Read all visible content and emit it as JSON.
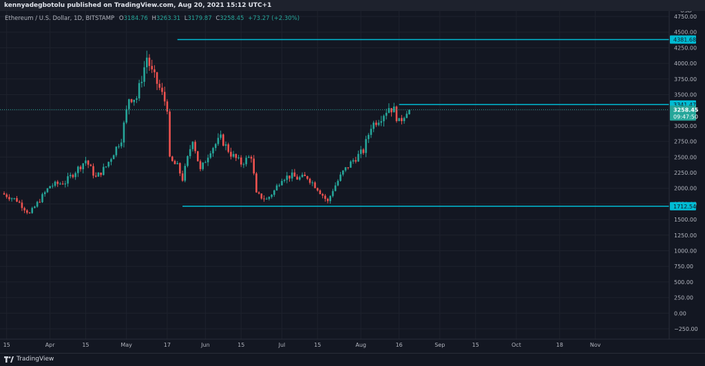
{
  "header": {
    "publisher_line": "kennyadegbotolu published on TradingView.com, Aug 20, 2021 15:12 UTC+1"
  },
  "legend": {
    "symbol": "Ethereum / U.S. Dollar, 1D, BITSTAMP",
    "o_label": "O",
    "o_value": "3184.76",
    "h_label": "H",
    "h_value": "3263.31",
    "l_label": "L",
    "l_value": "3179.87",
    "c_label": "C",
    "c_value": "3258.45",
    "change": "+73.27 (+2.30%)"
  },
  "footer": {
    "brand": "TradingView"
  },
  "colors": {
    "up": "#26a69a",
    "down": "#ef5350",
    "level": "#00bcd4",
    "background": "#131722",
    "grid": "#1e222d"
  },
  "chart_data": {
    "type": "candlestick",
    "currency_label": "USD",
    "ylim": [
      -250,
      4750
    ],
    "y_ticks": [
      -250,
      0,
      250,
      500,
      750,
      1000,
      1250,
      1500,
      1750,
      2000,
      2250,
      2500,
      2750,
      3000,
      3250,
      3500,
      3750,
      4000,
      4250,
      4500,
      4750
    ],
    "y_tick_labels": [
      "−250.00",
      "0.00",
      "250.00",
      "500.00",
      "750.00",
      "1000.00",
      "1250.00",
      "1500.00",
      "1750.00",
      "2000.00",
      "2250.00",
      "2500.00",
      "2750.00",
      "3000.00",
      "3250.00",
      "3500.00",
      "3750.00",
      "4000.00",
      "4250.00",
      "4500.00",
      "4750.00"
    ],
    "x_start": "2021-03-14",
    "x_end": "2021-11-30",
    "x_ticks": [
      {
        "date": "2021-03-15",
        "label": "15"
      },
      {
        "date": "2021-04-01",
        "label": "Apr"
      },
      {
        "date": "2021-04-15",
        "label": "15"
      },
      {
        "date": "2021-05-01",
        "label": "May"
      },
      {
        "date": "2021-05-17",
        "label": "17"
      },
      {
        "date": "2021-06-01",
        "label": "Jun"
      },
      {
        "date": "2021-06-15",
        "label": "15"
      },
      {
        "date": "2021-07-01",
        "label": "Jul"
      },
      {
        "date": "2021-07-15",
        "label": "15"
      },
      {
        "date": "2021-08-01",
        "label": "Aug"
      },
      {
        "date": "2021-08-16",
        "label": "16"
      },
      {
        "date": "2021-09-01",
        "label": "Sep"
      },
      {
        "date": "2021-09-15",
        "label": "15"
      },
      {
        "date": "2021-10-01",
        "label": "Oct"
      },
      {
        "date": "2021-10-18",
        "label": "18"
      },
      {
        "date": "2021-11-01",
        "label": "Nov"
      }
    ],
    "price_path": [
      [
        "2021-03-14",
        1920
      ],
      [
        "2021-03-20",
        1810
      ],
      [
        "2021-03-25",
        1590
      ],
      [
        "2021-04-02",
        2040
      ],
      [
        "2021-04-08",
        2100
      ],
      [
        "2021-04-16",
        2450
      ],
      [
        "2021-04-20",
        2170
      ],
      [
        "2021-04-24",
        2350
      ],
      [
        "2021-04-30",
        2800
      ],
      [
        "2021-05-03",
        3450
      ],
      [
        "2021-05-06",
        3450
      ],
      [
        "2021-05-10",
        4100
      ],
      [
        "2021-05-12",
        3850
      ],
      [
        "2021-05-15",
        3600
      ],
      [
        "2021-05-18",
        3300
      ],
      [
        "2021-05-19",
        2450
      ],
      [
        "2021-05-22",
        2350
      ],
      [
        "2021-05-24",
        2150
      ],
      [
        "2021-05-28",
        2800
      ],
      [
        "2021-05-31",
        2280
      ],
      [
        "2021-06-04",
        2620
      ],
      [
        "2021-06-08",
        2800
      ],
      [
        "2021-06-12",
        2550
      ],
      [
        "2021-06-16",
        2400
      ],
      [
        "2021-06-20",
        2520
      ],
      [
        "2021-06-22",
        1900
      ],
      [
        "2021-06-26",
        1820
      ],
      [
        "2021-06-29",
        1960
      ],
      [
        "2021-07-02",
        2170
      ],
      [
        "2021-07-06",
        2200
      ],
      [
        "2021-07-08",
        2160
      ],
      [
        "2021-07-12",
        2180
      ],
      [
        "2021-07-16",
        2000
      ],
      [
        "2021-07-20",
        1780
      ],
      [
        "2021-07-22",
        1980
      ],
      [
        "2021-07-26",
        2260
      ],
      [
        "2021-07-30",
        2450
      ],
      [
        "2021-08-03",
        2600
      ],
      [
        "2021-08-06",
        3000
      ],
      [
        "2021-08-10",
        3150
      ],
      [
        "2021-08-13",
        3300
      ],
      [
        "2021-08-15",
        3250
      ],
      [
        "2021-08-17",
        3050
      ],
      [
        "2021-08-19",
        3184.76
      ],
      [
        "2021-08-20",
        3258.45
      ]
    ],
    "last_candle": {
      "date": "2021-08-20",
      "open": 3184.76,
      "high": 3263.31,
      "low": 3179.87,
      "close": 3258.45
    },
    "horizontal_levels": [
      {
        "value": 4381.68,
        "label": "4381.68",
        "from": "2021-05-21"
      },
      {
        "value": 3341.47,
        "label": "3341.47",
        "from": "2021-08-16"
      },
      {
        "value": 1712.54,
        "label": "1712.54",
        "from": "2021-05-23"
      }
    ],
    "current_price": {
      "value": 3258.45,
      "label": "3258.45",
      "countdown": "09:47:50"
    }
  }
}
